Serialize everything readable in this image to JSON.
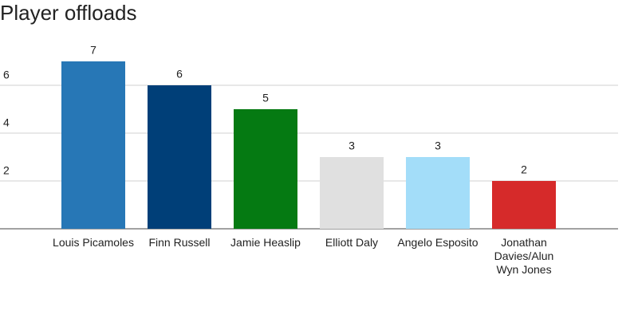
{
  "chart_data": {
    "type": "bar",
    "title": "Player offloads",
    "categories": [
      "Louis Picamoles",
      "Finn Russell",
      "Jamie Heaslip",
      "Elliott Daly",
      "Angelo Esposito",
      "Jonathan Davies/Alun Wyn Jones"
    ],
    "values": [
      7,
      6,
      5,
      3,
      3,
      2
    ],
    "colors": [
      "#2777b6",
      "#003f78",
      "#057a12",
      "#e0e0e0",
      "#a3ddf9",
      "#d62a2a"
    ],
    "ylim": [
      0,
      8
    ],
    "yticks": [
      2,
      4,
      6
    ],
    "grid": true
  }
}
